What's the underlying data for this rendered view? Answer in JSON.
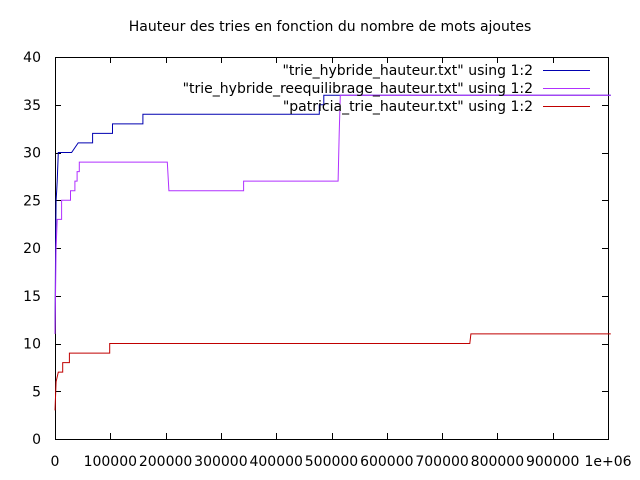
{
  "chart_data": {
    "type": "line",
    "title": "Hauteur des tries en fonction du nombre de mots ajoutes",
    "xlabel": "",
    "ylabel": "",
    "xlim": [
      0,
      1000000
    ],
    "ylim": [
      0,
      40
    ],
    "grid": false,
    "legend_position": "top-right",
    "x_ticks": [
      0,
      100000,
      200000,
      300000,
      400000,
      500000,
      600000,
      700000,
      800000,
      900000,
      1000000
    ],
    "x_tick_labels": [
      "0",
      "100000",
      "200000",
      "300000",
      "400000",
      "500000",
      "600000",
      "700000",
      "800000",
      "900000",
      "1e+06"
    ],
    "y_ticks": [
      0,
      5,
      10,
      15,
      20,
      25,
      30,
      35,
      40
    ],
    "y_tick_labels": [
      "0",
      "5",
      "10",
      "15",
      "20",
      "25",
      "30",
      "35",
      "40"
    ],
    "series": [
      {
        "name": "\"trie_hybride_hauteur.txt\" using 1:2",
        "color": "#0000b0",
        "points": [
          [
            0,
            11
          ],
          [
            1000,
            20
          ],
          [
            2000,
            25
          ],
          [
            3000,
            26
          ],
          [
            4000,
            27
          ],
          [
            6000,
            30
          ],
          [
            12000,
            30
          ],
          [
            30000,
            30
          ],
          [
            42000,
            31
          ],
          [
            68000,
            31
          ],
          [
            68000,
            32
          ],
          [
            104000,
            32
          ],
          [
            104000,
            33
          ],
          [
            159000,
            33
          ],
          [
            159000,
            34
          ],
          [
            478000,
            34
          ],
          [
            478000,
            35
          ],
          [
            486000,
            35
          ],
          [
            486000,
            36
          ],
          [
            1005000,
            36
          ]
        ]
      },
      {
        "name": "\"trie_hybride_reequilibrage_hauteur.txt\" using 1:2",
        "color": "#b030ff",
        "points": [
          [
            0,
            11
          ],
          [
            2000,
            20
          ],
          [
            4000,
            23
          ],
          [
            12000,
            23
          ],
          [
            12000,
            25
          ],
          [
            28000,
            25
          ],
          [
            28000,
            26
          ],
          [
            36000,
            26
          ],
          [
            36000,
            27
          ],
          [
            40000,
            27
          ],
          [
            40000,
            28
          ],
          [
            44000,
            28
          ],
          [
            44000,
            29
          ],
          [
            203000,
            29
          ],
          [
            206000,
            26
          ],
          [
            341000,
            26
          ],
          [
            341000,
            27
          ],
          [
            512000,
            27
          ],
          [
            514000,
            32
          ],
          [
            516000,
            36
          ],
          [
            1005000,
            36
          ]
        ]
      },
      {
        "name": "\"patricia_trie_hauteur.txt\" using 1:2",
        "color": "#c00000",
        "points": [
          [
            0,
            3
          ],
          [
            2000,
            6
          ],
          [
            6000,
            7
          ],
          [
            14000,
            7
          ],
          [
            14000,
            8
          ],
          [
            26000,
            8
          ],
          [
            26000,
            9
          ],
          [
            99000,
            9
          ],
          [
            99000,
            10
          ],
          [
            750000,
            10
          ],
          [
            752000,
            11
          ],
          [
            1005000,
            11
          ]
        ]
      }
    ]
  }
}
